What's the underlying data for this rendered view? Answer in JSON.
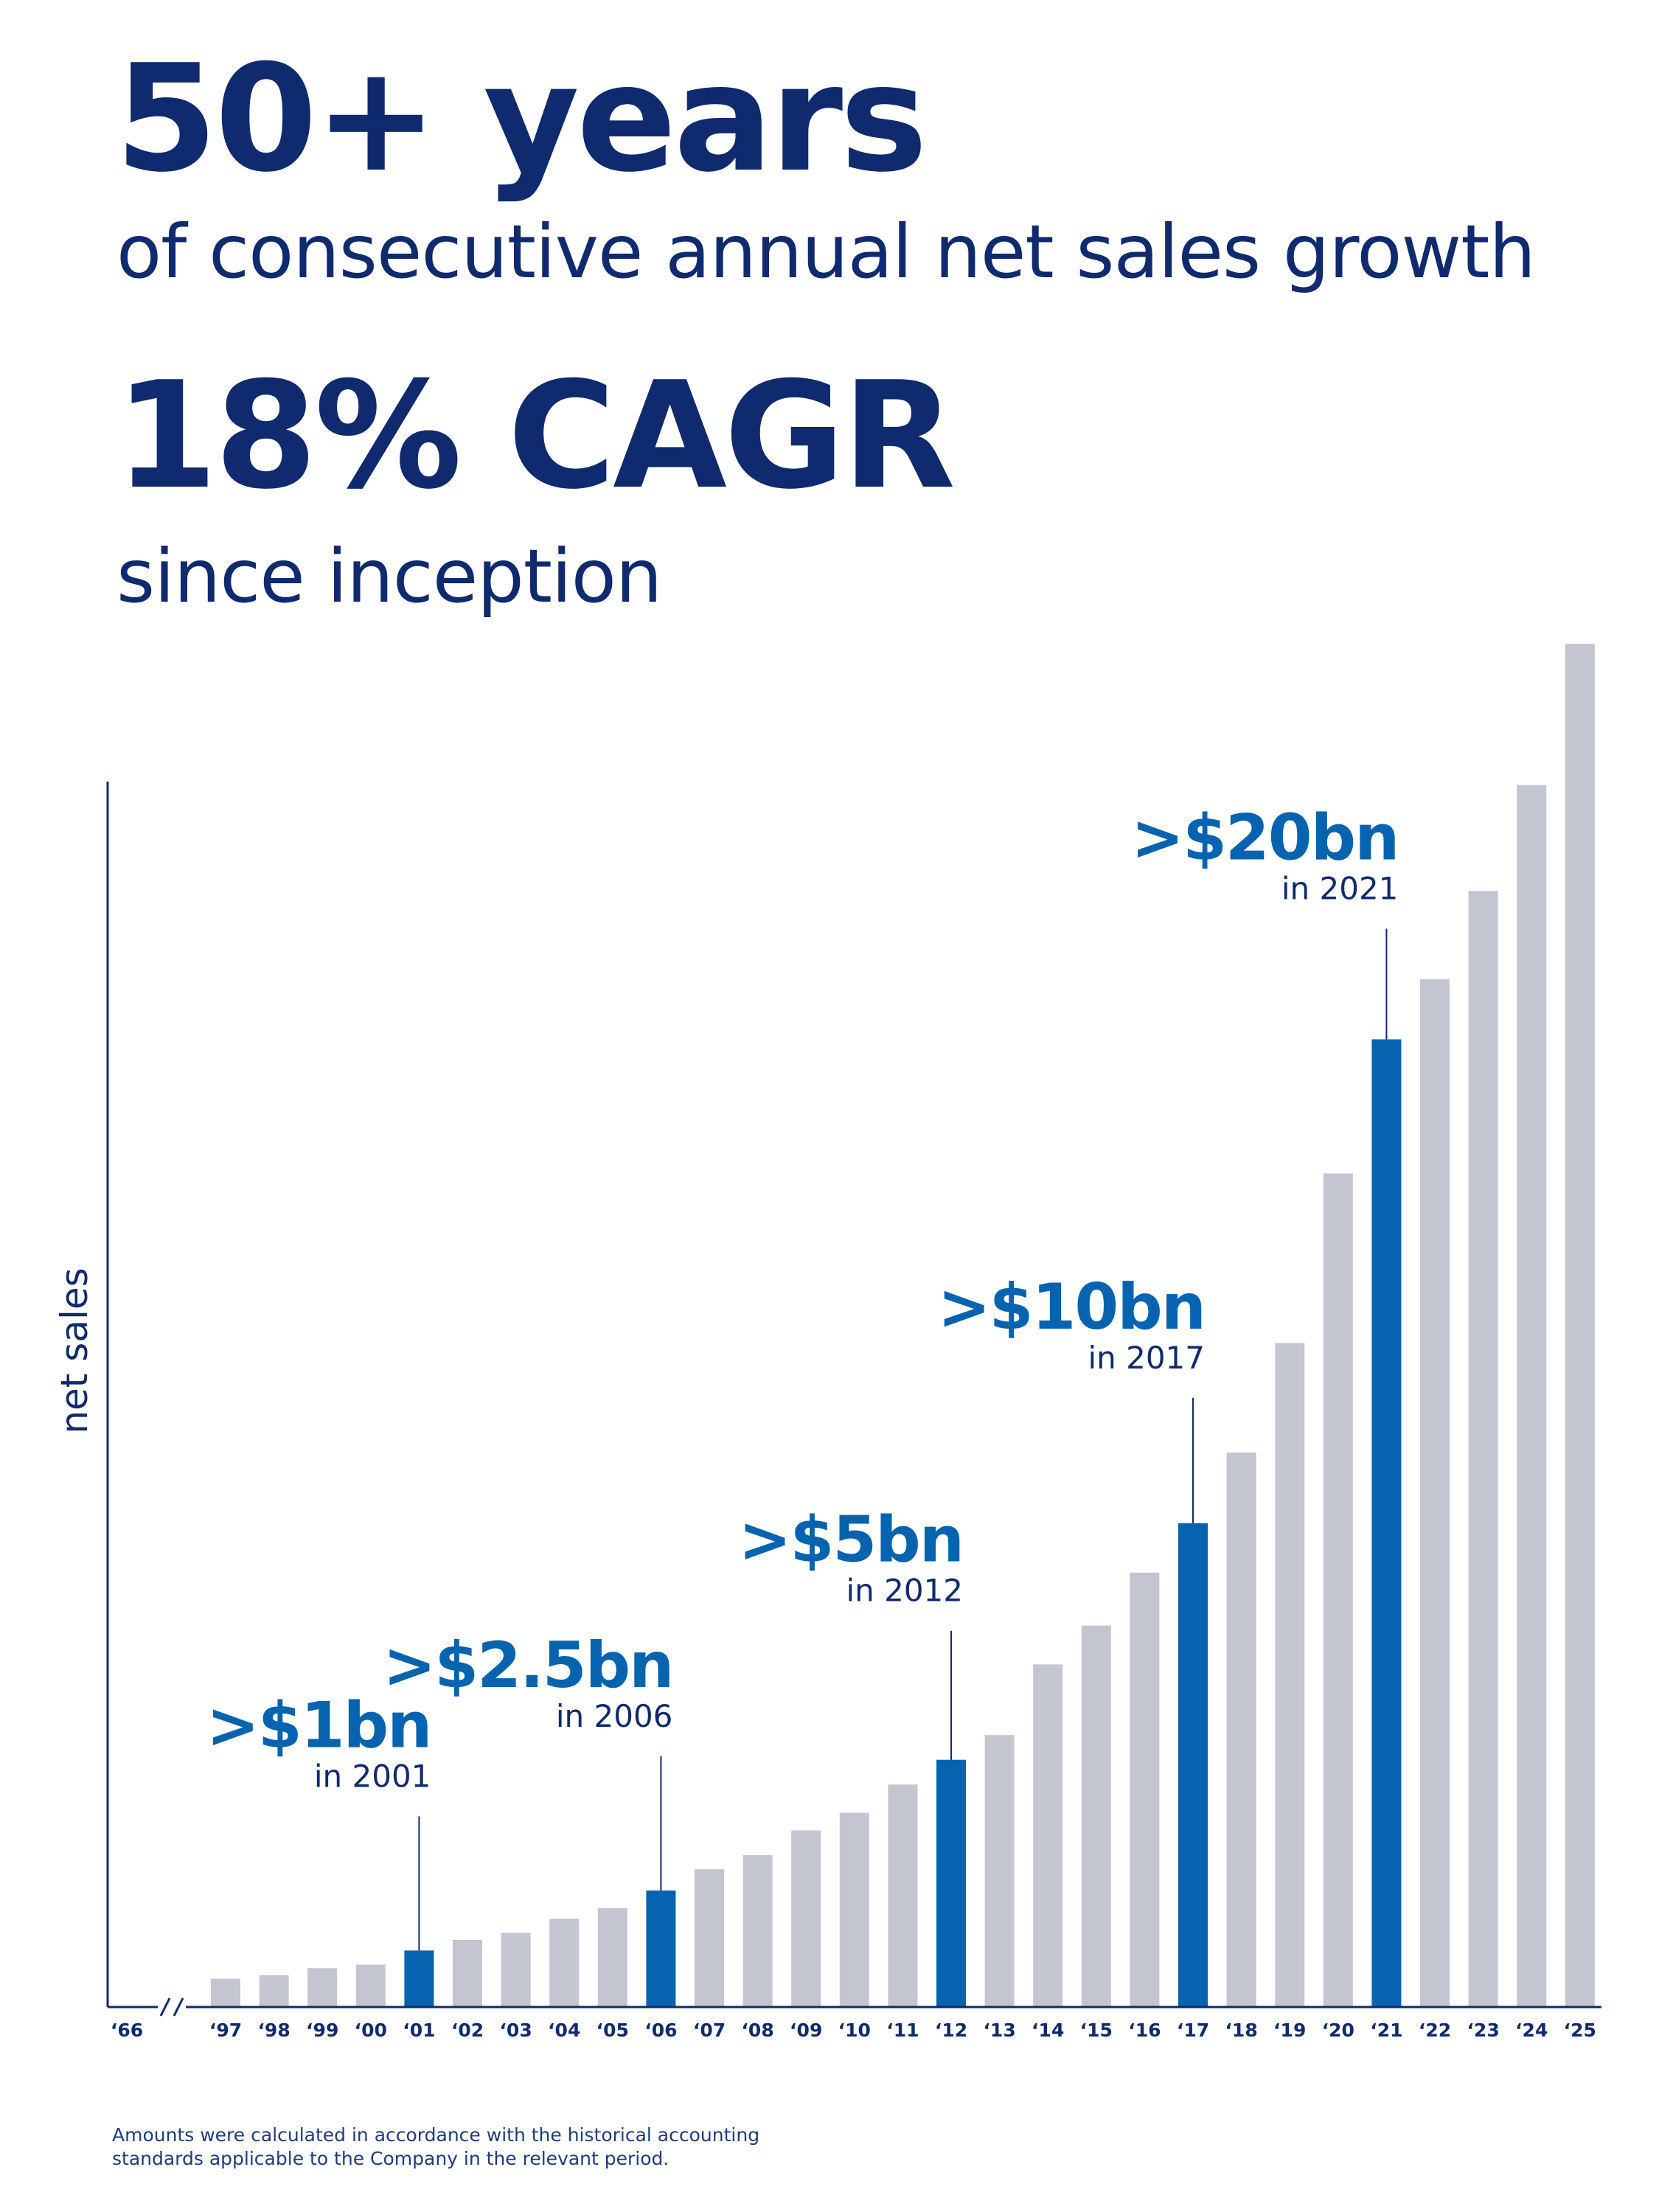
{
  "headline": {
    "line1": "50+ years",
    "line2": "of consecutive annual net sales growth",
    "line3": "18% CAGR",
    "line4": "since inception"
  },
  "footnote": {
    "line1": "Amounts were calculated in accordance with the historical accounting",
    "line2": "standards applicable to the Company in the relevant period."
  },
  "chart_data": {
    "type": "bar",
    "title": "",
    "xlabel": "",
    "ylabel": "net sales",
    "axis_break_label": "‘66",
    "categories": [
      "‘97",
      "‘98",
      "‘99",
      "‘00",
      "‘01",
      "‘02",
      "‘03",
      "‘04",
      "‘05",
      "‘06",
      "‘07",
      "‘08",
      "‘09",
      "‘10",
      "‘11",
      "‘12",
      "‘13",
      "‘14",
      "‘15",
      "‘16",
      "‘17",
      "‘18",
      "‘19",
      "‘20",
      "‘21",
      "‘22",
      "‘23",
      "‘24",
      "‘25"
    ],
    "values": [
      0.8,
      0.9,
      1.1,
      1.2,
      1.6,
      1.9,
      2.1,
      2.5,
      2.8,
      3.3,
      3.9,
      4.3,
      5.0,
      5.5,
      6.3,
      7.0,
      7.7,
      9.7,
      10.8,
      12.3,
      13.7,
      15.7,
      18.8,
      23.6,
      27.4,
      29.1,
      31.6,
      34.6,
      38.6
    ],
    "highlight_categories": [
      "‘01",
      "‘06",
      "‘12",
      "‘17",
      "‘21"
    ],
    "colors": {
      "bar": "#c3c6d0",
      "highlight": "#0563b0",
      "axis": "#0f2a6e"
    },
    "ylim": [
      0,
      40
    ],
    "grid": false,
    "annotations": [
      {
        "category": "‘01",
        "label": ">$1bn",
        "sublabel": "in 2001"
      },
      {
        "category": "‘06",
        "label": ">$2.5bn",
        "sublabel": "in 2006"
      },
      {
        "category": "‘12",
        "label": ">$5bn",
        "sublabel": "in 2012"
      },
      {
        "category": "‘17",
        "label": ">$10bn",
        "sublabel": "in 2017"
      },
      {
        "category": "‘21",
        "label": ">$20bn",
        "sublabel": "in 2021"
      }
    ]
  }
}
